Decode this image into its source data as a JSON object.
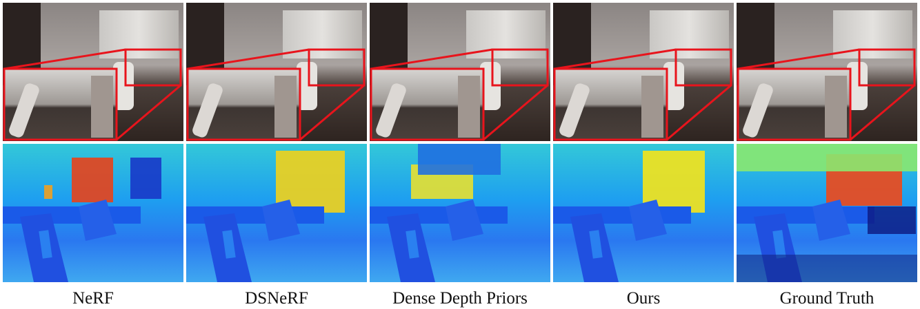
{
  "figure": {
    "columns": [
      {
        "label": "NeRF"
      },
      {
        "label": "DSNeRF"
      },
      {
        "label": "Dense Depth Priors"
      },
      {
        "label": "Ours"
      },
      {
        "label": "Ground Truth"
      }
    ]
  }
}
